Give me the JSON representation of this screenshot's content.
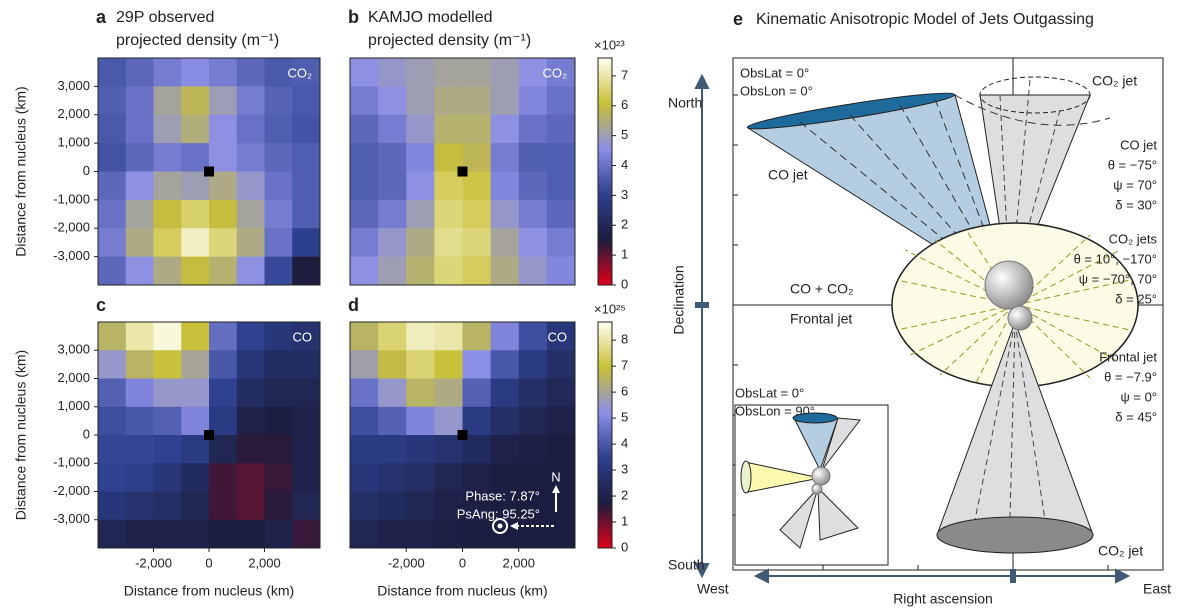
{
  "chart_data": [
    {
      "type": "heatmap",
      "panel": "a",
      "title_lines": [
        "29P observed",
        "projected density (m⁻¹)"
      ],
      "annotation": "CO₂",
      "ylabel": "Distance from nucleus (km)",
      "xlim": [
        -4000,
        4000
      ],
      "ylim": [
        -4000,
        4000
      ],
      "yticks": [
        {
          "value": 3000,
          "label": "3,000"
        },
        {
          "value": 2000,
          "label": "2,000"
        },
        {
          "value": 1000,
          "label": "1,000"
        },
        0,
        {
          "value": -1000,
          "label": "-1,000"
        },
        {
          "value": -2000,
          "label": "-2,000"
        },
        {
          "value": -3000,
          "label": "-3,000"
        }
      ],
      "colormap": [
        "#e0001b",
        "#1b1d3e",
        "#2d418f",
        "#8c8fe6",
        "#c8c037",
        "#fffff2"
      ],
      "clim": [
        0,
        7.6
      ],
      "z": [
        [
          3.5,
          3.8,
          4.2,
          4.5,
          4.2,
          3.8,
          3.5,
          3.6
        ],
        [
          3.6,
          4.0,
          5.2,
          5.8,
          5.0,
          4.2,
          3.7,
          3.5
        ],
        [
          3.5,
          4.0,
          5.0,
          5.5,
          4.6,
          4.0,
          3.6,
          3.4
        ],
        [
          3.4,
          3.8,
          4.2,
          4.0,
          4.6,
          4.2,
          3.8,
          3.6
        ],
        [
          3.8,
          4.6,
          5.2,
          5.0,
          5.4,
          4.8,
          4.0,
          3.6
        ],
        [
          4.0,
          5.2,
          6.0,
          6.5,
          6.0,
          5.2,
          4.2,
          3.6
        ],
        [
          4.2,
          5.4,
          6.4,
          7.2,
          6.6,
          5.4,
          4.0,
          3.0
        ],
        [
          3.8,
          4.6,
          5.4,
          6.0,
          5.6,
          4.6,
          3.2,
          1.5
        ]
      ]
    },
    {
      "type": "heatmap",
      "panel": "b",
      "title_lines": [
        "KAMJO modelled",
        "projected density (m⁻¹)"
      ],
      "annotation": "CO₂",
      "xlim": [
        -4000,
        4000
      ],
      "ylim": [
        -4000,
        4000
      ],
      "colormap": [
        "#e0001b",
        "#1b1d3e",
        "#2d418f",
        "#8c8fe6",
        "#c8c037",
        "#fffff2"
      ],
      "clim": [
        0,
        7.6
      ],
      "colorbar": {
        "ticks": [
          0,
          1,
          2,
          3,
          4,
          5,
          6,
          7
        ],
        "scale_label": "×10²³"
      },
      "z": [
        [
          4.6,
          4.8,
          5.0,
          5.2,
          5.2,
          5.0,
          4.6,
          4.2
        ],
        [
          4.2,
          4.6,
          5.0,
          5.4,
          5.4,
          5.0,
          4.4,
          4.0
        ],
        [
          3.8,
          4.2,
          4.8,
          5.6,
          5.6,
          4.6,
          4.0,
          3.8
        ],
        [
          3.6,
          3.8,
          4.4,
          6.0,
          5.8,
          4.2,
          3.6,
          3.6
        ],
        [
          3.6,
          3.8,
          4.6,
          6.4,
          6.2,
          4.4,
          3.8,
          3.6
        ],
        [
          3.8,
          4.2,
          5.0,
          6.6,
          6.4,
          4.8,
          4.2,
          3.8
        ],
        [
          4.2,
          4.8,
          5.4,
          6.8,
          6.6,
          5.2,
          4.6,
          4.2
        ],
        [
          4.6,
          5.0,
          5.6,
          6.6,
          6.4,
          5.4,
          4.8,
          4.4
        ]
      ]
    },
    {
      "type": "heatmap",
      "panel": "c",
      "annotation": "CO",
      "ylabel": "Distance from nucleus (km)",
      "xlabel": "Distance from nucleus (km)",
      "xlim": [
        -4000,
        4000
      ],
      "ylim": [
        -4000,
        4000
      ],
      "xticks": [
        {
          "value": -2000,
          "label": "-2,000"
        },
        0,
        {
          "value": 2000,
          "label": "2,000"
        }
      ],
      "yticks": [
        {
          "value": 3000,
          "label": "3,000"
        },
        {
          "value": 2000,
          "label": "2,000"
        },
        {
          "value": 1000,
          "label": "1,000"
        },
        0,
        {
          "value": -1000,
          "label": "-1,000"
        },
        {
          "value": -2000,
          "label": "-2,000"
        },
        {
          "value": -3000,
          "label": "-3,000"
        }
      ],
      "colormap": [
        "#e0001b",
        "#1b1d3e",
        "#2d418f",
        "#8c8fe6",
        "#c8c037",
        "#fffff2"
      ],
      "clim": [
        0,
        8.7
      ],
      "z": [
        [
          6.5,
          8.0,
          8.5,
          7.0,
          4.5,
          3.5,
          3.0,
          2.8
        ],
        [
          5.5,
          6.5,
          7.0,
          6.0,
          4.0,
          3.0,
          2.5,
          2.5
        ],
        [
          4.2,
          5.0,
          5.5,
          5.5,
          3.5,
          2.5,
          2.2,
          2.2
        ],
        [
          3.8,
          4.0,
          4.2,
          5.0,
          3.2,
          2.0,
          1.8,
          2.0
        ],
        [
          3.6,
          3.6,
          3.5,
          3.2,
          2.2,
          1.6,
          1.6,
          2.0
        ],
        [
          3.5,
          3.4,
          3.0,
          2.4,
          1.4,
          1.2,
          1.5,
          2.0
        ],
        [
          3.0,
          2.8,
          2.6,
          2.2,
          1.4,
          1.2,
          1.6,
          2.2
        ],
        [
          2.2,
          2.0,
          2.0,
          2.0,
          1.8,
          1.8,
          2.0,
          1.5
        ]
      ]
    },
    {
      "type": "heatmap",
      "panel": "d",
      "annotation": "CO",
      "xlabel": "Distance from nucleus (km)",
      "xlim": [
        -4000,
        4000
      ],
      "ylim": [
        -4000,
        4000
      ],
      "xticks": [
        {
          "value": -2000,
          "label": "-2,000"
        },
        0,
        {
          "value": 2000,
          "label": "2,000"
        }
      ],
      "colormap": [
        "#e0001b",
        "#1b1d3e",
        "#2d418f",
        "#8c8fe6",
        "#c8c037",
        "#fffff2"
      ],
      "clim": [
        0,
        8.7
      ],
      "colorbar": {
        "ticks": [
          0,
          1,
          2,
          3,
          4,
          5,
          6,
          7,
          8
        ],
        "scale_label": "×10²⁵"
      },
      "notes": [
        "Phase: 7.87°",
        "PsAng: 95.25°"
      ],
      "compass": "N",
      "z": [
        [
          6.5,
          7.5,
          8.2,
          8.0,
          6.5,
          5.0,
          3.8,
          3.0
        ],
        [
          5.8,
          6.8,
          7.5,
          7.0,
          5.2,
          4.0,
          3.2,
          2.6
        ],
        [
          4.6,
          5.5,
          6.5,
          6.2,
          4.2,
          3.2,
          2.6,
          2.3
        ],
        [
          3.8,
          4.2,
          5.0,
          5.5,
          3.2,
          2.6,
          2.2,
          2.0
        ],
        [
          3.2,
          3.2,
          3.0,
          2.8,
          2.4,
          2.0,
          1.9,
          1.8
        ],
        [
          3.0,
          2.8,
          2.6,
          2.2,
          2.0,
          1.8,
          1.8,
          1.8
        ],
        [
          2.6,
          2.4,
          2.2,
          2.0,
          1.9,
          1.8,
          1.8,
          1.8
        ],
        [
          2.2,
          2.0,
          2.0,
          1.9,
          1.8,
          1.8,
          1.8,
          1.8
        ]
      ]
    }
  ],
  "diagram": {
    "panel": "e",
    "title": "Kinematic Anisotropic Model of Jets Outgassing",
    "north": "North",
    "south": "South",
    "west": "West",
    "east": "East",
    "declination": "Declination",
    "right_ascension": "Right ascension",
    "obs_front": [
      "ObsLat = 0°",
      "ObsLon = 0°"
    ],
    "obs_inset": [
      "ObsLat = 0°",
      "ObsLon = 90°"
    ],
    "co2_jet_top": "CO₂ jet",
    "co2_jet_bottom": "CO₂ jet",
    "co_jet": "CO jet",
    "frontal_lines": [
      "CO + CO₂",
      "Frontal jet"
    ],
    "params": [
      {
        "name": "CO jet",
        "lines": [
          "θ = −75°",
          "ψ = 70°",
          "δ = 30°"
        ]
      },
      {
        "name": "CO₂ jets",
        "lines": [
          "θ = 10°, −170°",
          "ψ = −70°, 70°",
          "δ = 25°"
        ]
      },
      {
        "name": "Frontal jet",
        "lines": [
          "θ = −7.9°",
          "ψ = 0°",
          "δ = 45°"
        ]
      }
    ]
  }
}
